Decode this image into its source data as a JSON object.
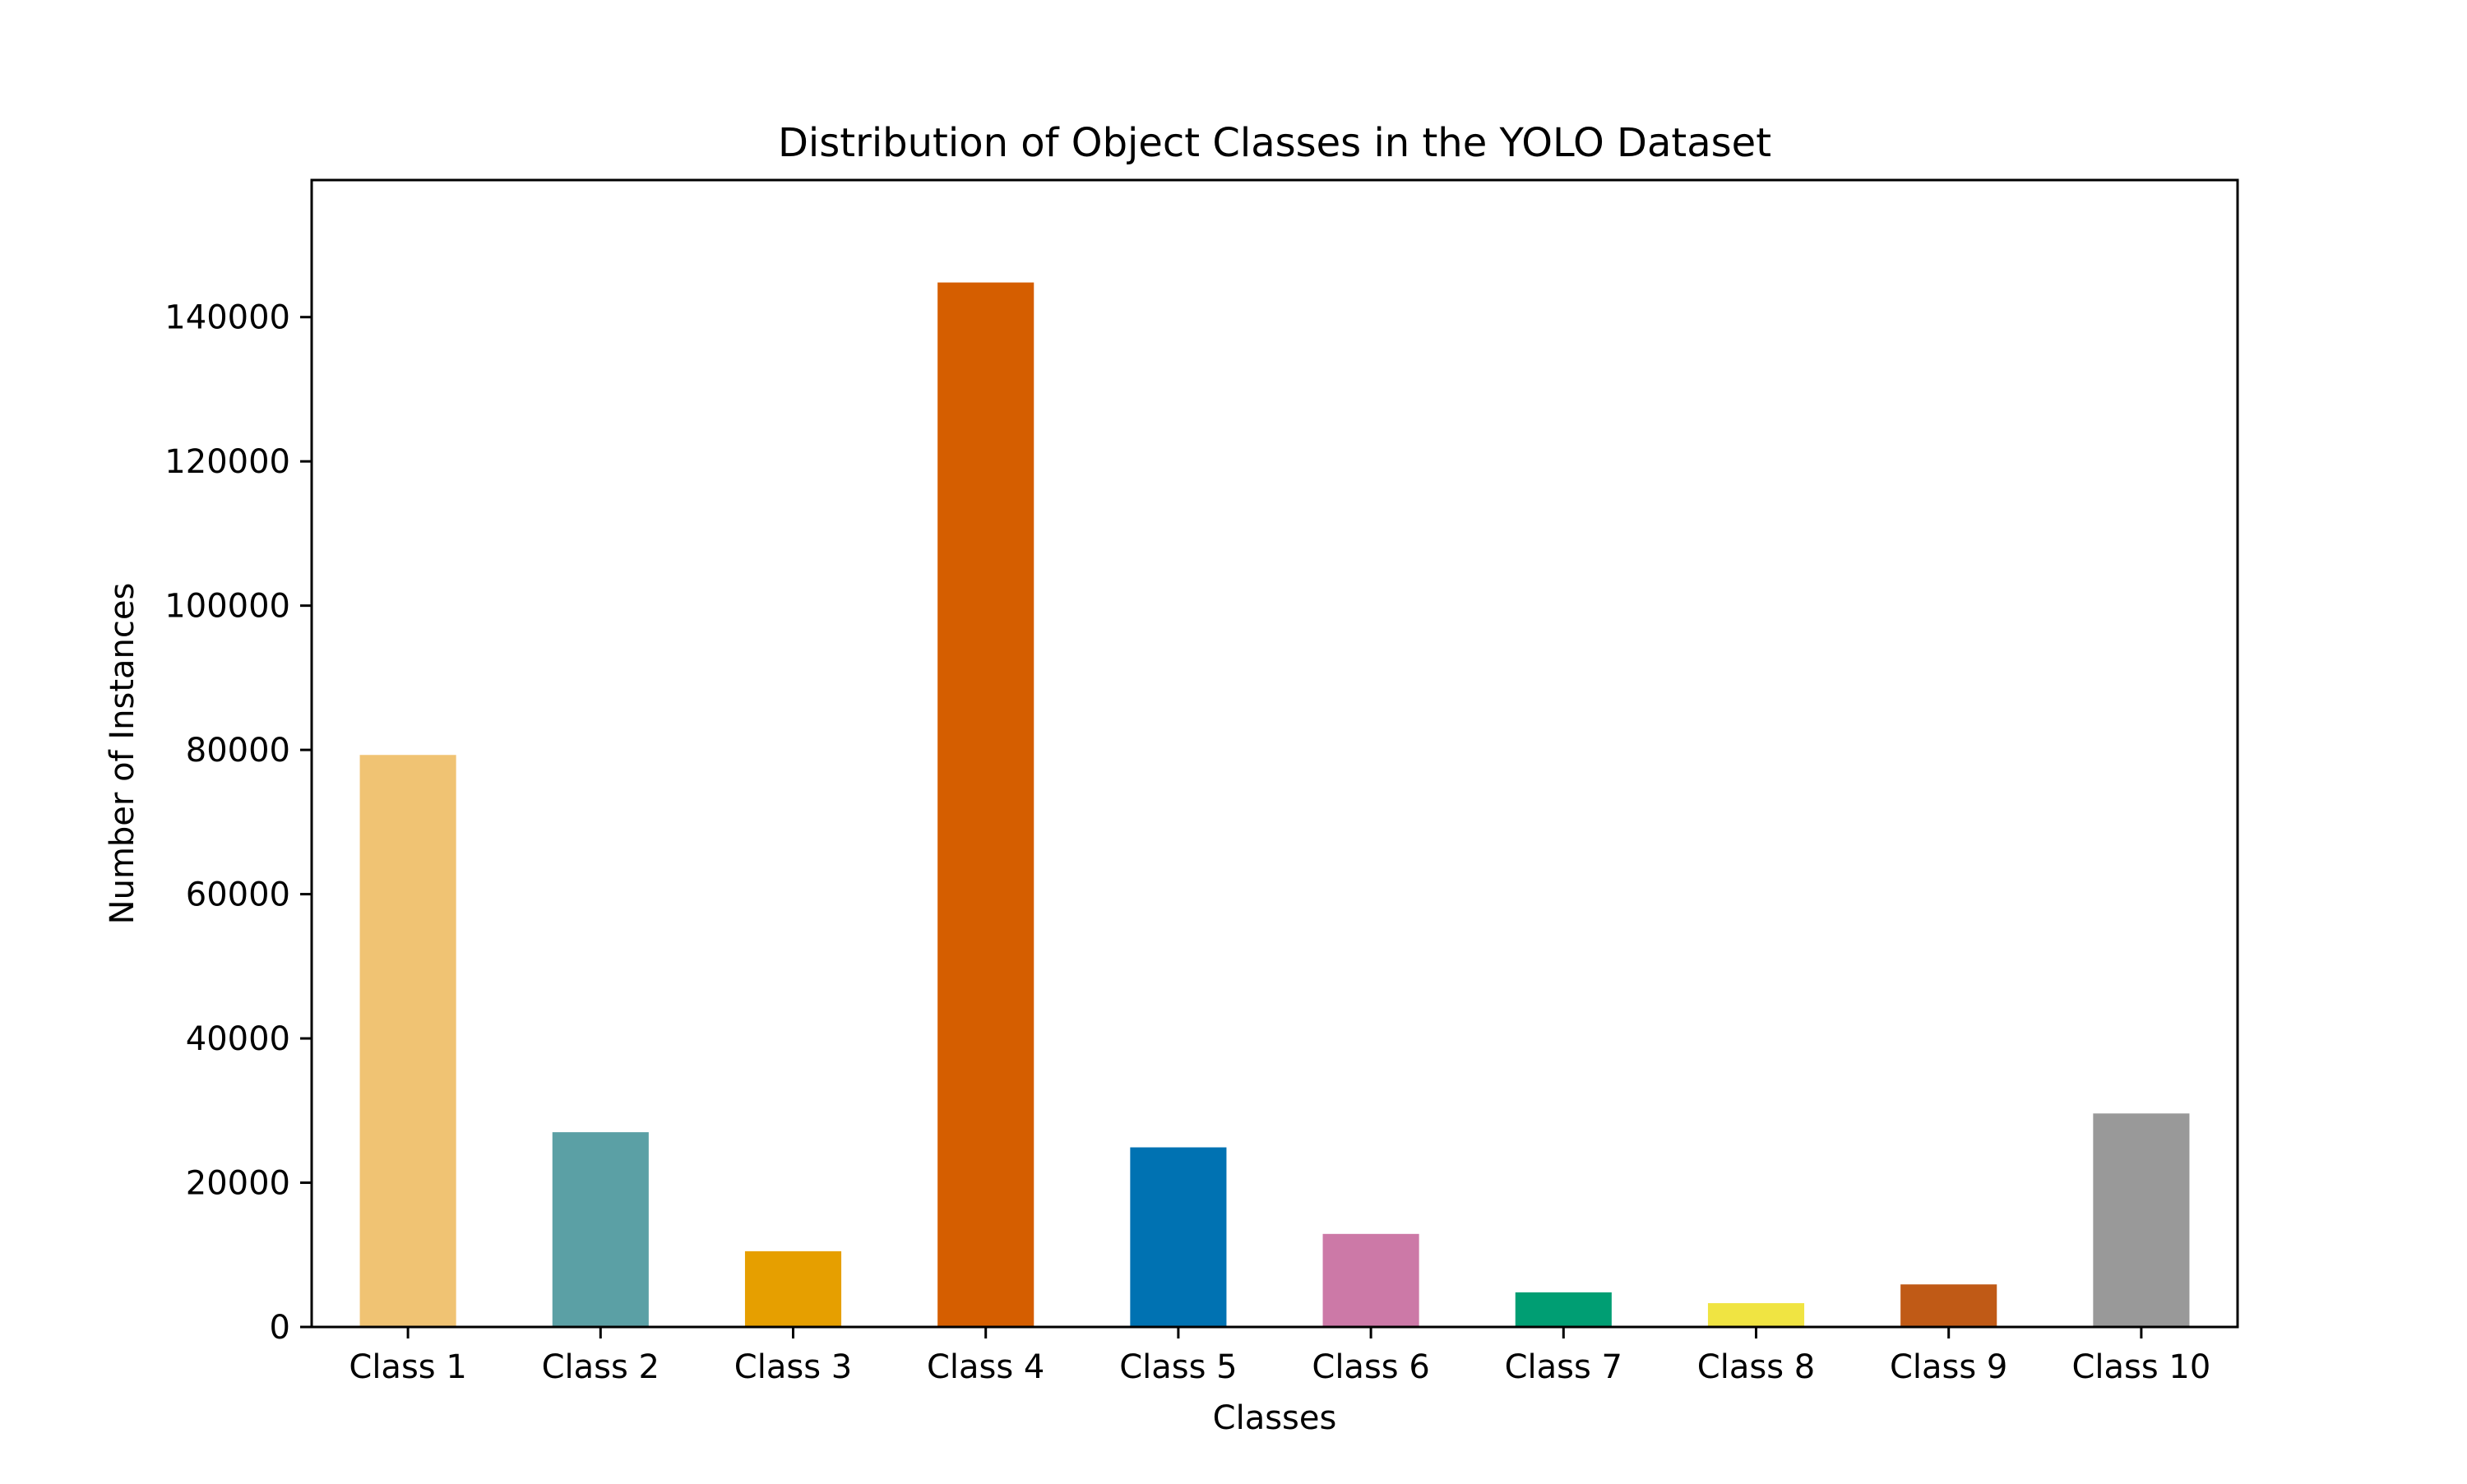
{
  "chart_data": {
    "type": "bar",
    "title": "Distribution of Object Classes in the YOLO Dataset",
    "xlabel": "Classes",
    "ylabel": "Number of Instances",
    "categories": [
      "Class 1",
      "Class 2",
      "Class 3",
      "Class 4",
      "Class 5",
      "Class 6",
      "Class 7",
      "Class 8",
      "Class 9",
      "Class 10"
    ],
    "values": [
      79300,
      27000,
      10500,
      144800,
      24900,
      12900,
      4800,
      3300,
      5900,
      29600
    ],
    "colors": [
      "#F0C373",
      "#5BA0A5",
      "#E69F00",
      "#D55E00",
      "#0072B2",
      "#CC79A7",
      "#009E73",
      "#F0E442",
      "#C05A16",
      "#999999"
    ],
    "ylim": [
      0,
      159000
    ],
    "yticks": [
      0,
      20000,
      40000,
      60000,
      80000,
      100000,
      120000,
      140000
    ],
    "ytick_labels": [
      "0",
      "20000",
      "40000",
      "60000",
      "80000",
      "100000",
      "120000",
      "140000"
    ],
    "grid": false,
    "legend": "none"
  }
}
